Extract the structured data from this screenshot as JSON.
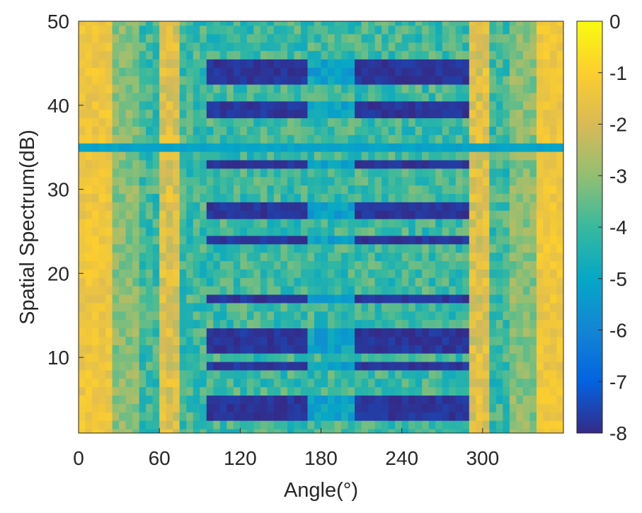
{
  "chart_data": {
    "type": "heatmap",
    "title": "",
    "xlabel": "Angle(°)",
    "ylabel": "Spatial Spectrum(dB)",
    "xlim": [
      0,
      360
    ],
    "ylim": [
      1,
      50
    ],
    "x_step": 5,
    "y_step": 1,
    "xticks": [
      "0",
      "60",
      "120",
      "180",
      "240",
      "300"
    ],
    "yticks": [
      "10",
      "20",
      "30",
      "40",
      "50"
    ],
    "colorbar": {
      "colormap": "parula",
      "range": [
        -8,
        0
      ],
      "ticks": [
        "0",
        "-1",
        "-2",
        "-3",
        "-4",
        "-5",
        "-6",
        "-7",
        "-8"
      ]
    },
    "edge_levels_db": [
      -1.0,
      -2.5
    ],
    "peak_lines_deg": [
      65,
      295
    ],
    "dark_band_rows": [
      3,
      4,
      5,
      9,
      11,
      12,
      13,
      17,
      24,
      27,
      28,
      33,
      35,
      39,
      40,
      43,
      44,
      45
    ],
    "near_zero_rows": [
      35
    ],
    "colors": {
      "parula_stops": [
        "#352a87",
        "#0363e1",
        "#1485d4",
        "#06a7c6",
        "#38b99e",
        "#92bf73",
        "#d9ba56",
        "#fcce2e",
        "#f9fb0e"
      ]
    }
  }
}
